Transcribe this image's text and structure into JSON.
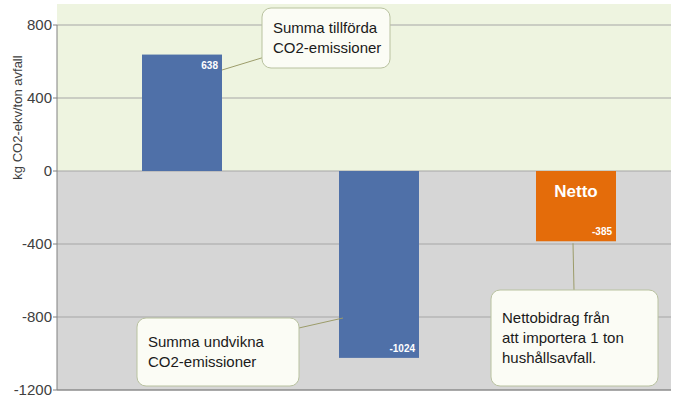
{
  "chart_data": {
    "type": "bar",
    "y_label": "kg CO2-ekv/ton avfall",
    "categories": [
      null,
      null,
      null
    ],
    "values": [
      638,
      -1024,
      -385
    ],
    "colors": [
      "#4f70a8",
      "#4f70a8",
      "#e46c0a"
    ],
    "bar_labels": [
      null,
      null,
      "Netto"
    ],
    "annotations": [
      "Summa tillförda\nCO2-emissioner",
      "Summa undvikna\nCO2-emissioner",
      "Nettobidrag från\natt importera 1 ton\nhushållsavfall."
    ],
    "ylim": [
      -1200,
      800
    ],
    "yticks": [
      -1200,
      -800,
      -400,
      0,
      400,
      800
    ],
    "grid": true,
    "data_labels": true
  }
}
